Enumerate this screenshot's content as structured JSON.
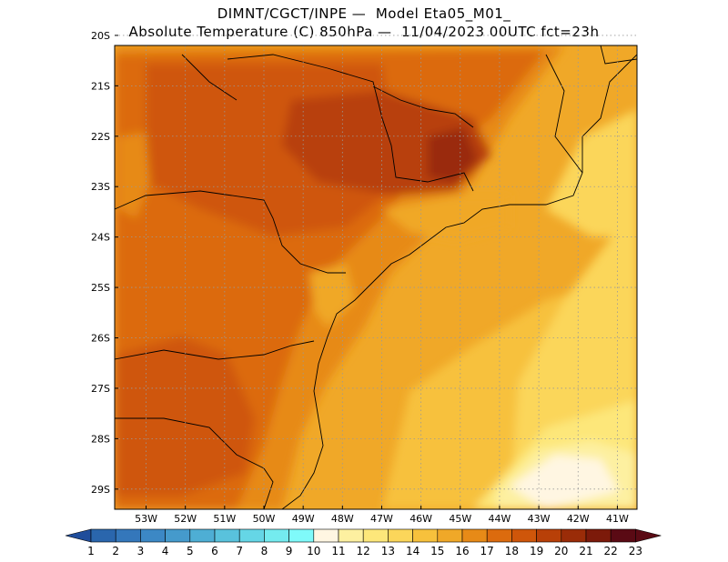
{
  "title": {
    "line1": "DIMNT/CGCT/INPE —  Model Eta05_M01_",
    "line2": "Absolute Temperature (C) 850hPa —  11/04/2023 00UTC fct=23h"
  },
  "map": {
    "lon_range": [
      -53.8,
      -40.5
    ],
    "lat_range": [
      -29.4,
      -20.2
    ],
    "lon_ticks": [
      "53W",
      "52W",
      "51W",
      "50W",
      "49W",
      "48W",
      "47W",
      "46W",
      "45W",
      "44W",
      "43W",
      "42W",
      "41W"
    ],
    "lat_ticks": [
      "20S",
      "21S",
      "22S",
      "23S",
      "24S",
      "25S",
      "26S",
      "27S",
      "28S",
      "29S"
    ],
    "grid": true
  },
  "colorbar": {
    "labels": [
      "1",
      "2",
      "3",
      "4",
      "5",
      "6",
      "7",
      "8",
      "9",
      "10",
      "11",
      "12",
      "13",
      "14",
      "15",
      "16",
      "17",
      "18",
      "19",
      "20",
      "21",
      "22",
      "23"
    ],
    "colors": [
      "#1f4d9b",
      "#2a66ad",
      "#3477bb",
      "#3c88c5",
      "#459acc",
      "#4eaed4",
      "#59c2dc",
      "#65d6e6",
      "#74ebef",
      "#7ffafa",
      "#fff6e2",
      "#fdf0a0",
      "#fde77a",
      "#fbd65a",
      "#f7c13c",
      "#f0a828",
      "#e78a17",
      "#dc6b0e",
      "#cf560a",
      "#b84008",
      "#9a2c08",
      "#7c1a0a",
      "#5a0a14"
    ]
  }
}
